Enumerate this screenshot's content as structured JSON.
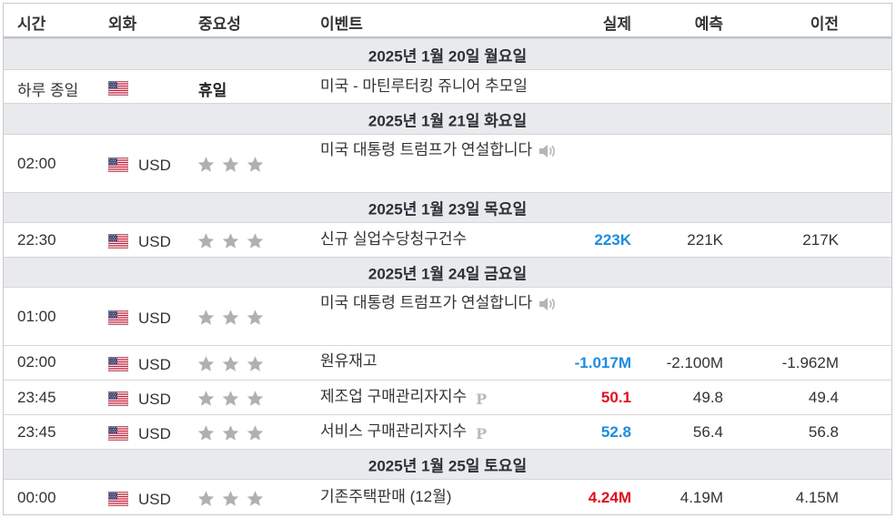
{
  "header": {
    "time": "시간",
    "currency": "외화",
    "importance": "중요성",
    "event": "이벤트",
    "actual": "실제",
    "forecast": "예측",
    "previous": "이전"
  },
  "dates": {
    "d1": "2025년 1월 20일 월요일",
    "d2": "2025년 1월 21일 화요일",
    "d3": "2025년 1월 23일 목요일",
    "d4": "2025년 1월 24일 금요일",
    "d5": "2025년 1월 25일 토요일"
  },
  "rows": {
    "r1": {
      "time": "하루 종일",
      "importance": "휴일",
      "event": "미국 - 마틴루터킹 쥬니어 추모일"
    },
    "r2": {
      "time": "02:00",
      "currency": "USD",
      "event": "미국 대통령 트럼프가 연설합니다"
    },
    "r3": {
      "time": "22:30",
      "currency": "USD",
      "event": "신규 실업수당청구건수",
      "actual": "223K",
      "forecast": "221K",
      "previous": "217K"
    },
    "r4": {
      "time": "01:00",
      "currency": "USD",
      "event": "미국 대통령 트럼프가 연설합니다"
    },
    "r5": {
      "time": "02:00",
      "currency": "USD",
      "event": "원유재고",
      "actual": "-1.017M",
      "forecast": "-2.100M",
      "previous": "-1.962M"
    },
    "r6": {
      "time": "23:45",
      "currency": "USD",
      "event": "제조업 구매관리자지수",
      "actual": "50.1",
      "forecast": "49.8",
      "previous": "49.4",
      "mark": "P"
    },
    "r7": {
      "time": "23:45",
      "currency": "USD",
      "event": "서비스 구매관리자지수",
      "actual": "52.8",
      "forecast": "56.4",
      "previous": "56.8",
      "mark": "P"
    },
    "r8": {
      "time": "00:00",
      "currency": "USD",
      "event": "기존주택판매 (12월)",
      "actual": "4.24M",
      "forecast": "4.19M",
      "previous": "4.15M"
    }
  },
  "colors": {
    "better": "#1a8de0",
    "worse": "#e0101f",
    "star_inactive": "#b0b0b0",
    "date_row_bg": "#e8eaed"
  },
  "icons": {
    "flag": "us-flag-icon",
    "star": "star-icon",
    "speaker": "speaker-icon"
  }
}
